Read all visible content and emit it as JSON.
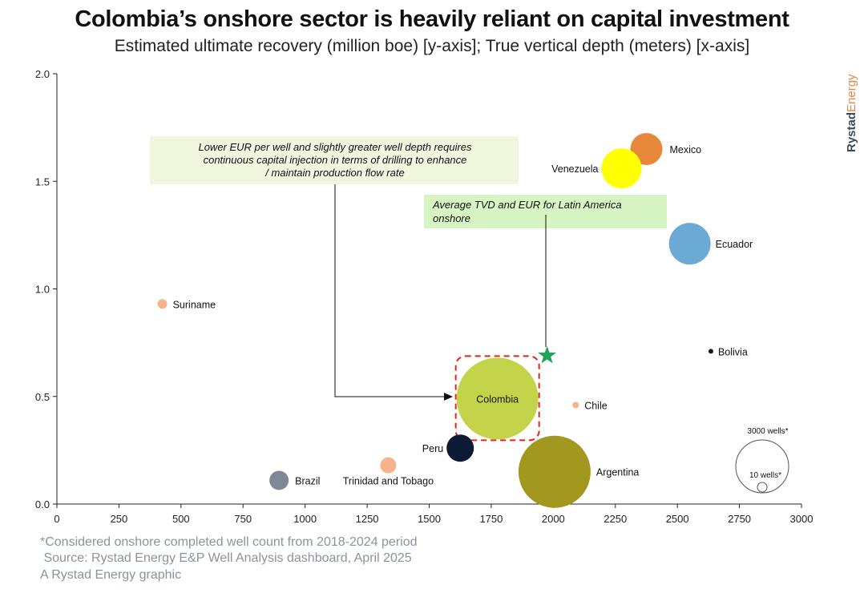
{
  "title": "Colombia’s onshore sector is heavily reliant on capital investment",
  "subtitle": "Estimated ultimate recovery (million boe) [y-axis]; True vertical depth (meters) [x-axis]",
  "brand": {
    "part1": "Rystad",
    "part2": "Energy"
  },
  "footnotes": {
    "note": "*Considered onshore completed well count from 2018-2024 period",
    "source": " Source: Rystad Energy E&P Well Analysis dashboard, April 2025",
    "credit": "A Rystad Energy graphic"
  },
  "chart_data": {
    "type": "scatter",
    "title": "Colombia’s onshore sector is heavily reliant on capital investment",
    "subtitle": "Estimated ultimate recovery (million boe) [y-axis]; True vertical depth (meters) [x-axis]",
    "xlim": [
      0,
      3000
    ],
    "ylim": [
      0,
      2.0
    ],
    "x_ticks": [
      "0",
      "250",
      "500",
      "750",
      "1000",
      "1250",
      "1500",
      "1750",
      "2000",
      "2250",
      "2500",
      "2750",
      "3000"
    ],
    "y_ticks": [
      "0.0",
      "0.5",
      "1.0",
      "1.5",
      "2.0"
    ],
    "grid": false,
    "points": [
      {
        "label": "Mexico",
        "x": 2375,
        "y": 1.65,
        "color": "#e8883a"
      },
      {
        "label": "Venezuela",
        "x": 2275,
        "y": 1.56,
        "color": "#ffff00"
      },
      {
        "label": "Ecuador",
        "x": 2550,
        "y": 1.21,
        "color": "#6aaad4"
      },
      {
        "label": "Suriname",
        "x": 425,
        "y": 0.93,
        "color": "#f5b38c"
      },
      {
        "label": "Bolivia",
        "x": 2635,
        "y": 0.71,
        "color": "#0c1a33"
      },
      {
        "label": "Colombia",
        "x": 1775,
        "y": 0.49,
        "color": "#c3d34a"
      },
      {
        "label": "Chile",
        "x": 2090,
        "y": 0.46,
        "color": "#f5b38c"
      },
      {
        "label": "Peru",
        "x": 1625,
        "y": 0.26,
        "color": "#0c1a33"
      },
      {
        "label": "Trinidad and Tobago",
        "x": 1335,
        "y": 0.18,
        "color": "#f5b38c"
      },
      {
        "label": "Brazil",
        "x": 895,
        "y": 0.11,
        "color": "#7e8896"
      },
      {
        "label": "Argentina",
        "x": 2005,
        "y": 0.15,
        "color": "#a3981f"
      }
    ],
    "average": {
      "x": 1975,
      "y": 0.69,
      "color": "#1fa35a"
    },
    "annotations": [
      {
        "text": "Lower EUR per well and slightly greater well depth requires continuous capital injection in terms of drilling to enhance/ maintain production flow rate"
      },
      {
        "text": "Average TVD and EUR for Latin America onshore"
      }
    ],
    "size_legend": {
      "large": "3000 wells*",
      "small": "10 wells*"
    }
  }
}
